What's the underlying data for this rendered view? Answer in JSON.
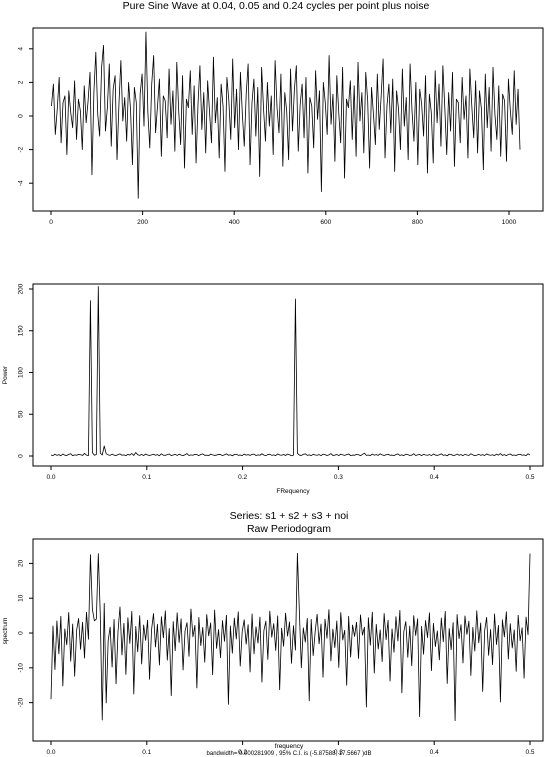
{
  "chart_data": [
    {
      "type": "line",
      "title": "Pure Sine Wave at 0.04, 0.05 and 0.24 cycles per point plus noise",
      "xlabel": "",
      "ylabel": "",
      "xlim": [
        0,
        1024
      ],
      "ylim": [
        -5,
        5
      ],
      "x_ticks": [
        0,
        200,
        400,
        600,
        800,
        1000
      ],
      "x_tick_labels": [
        "0",
        "200",
        "400",
        "600",
        "800",
        "1000"
      ],
      "y_ticks": [
        -4,
        -2,
        0,
        2,
        4
      ],
      "y_tick_labels": [
        "-4",
        "-2",
        "0",
        "2",
        "4"
      ],
      "series": [
        {
          "x_start": 1,
          "x_end": 1024,
          "x_step": 4,
          "values": [
            0.6,
            1.9,
            -1.1,
            0.4,
            2.3,
            -1.6,
            0.8,
            1.2,
            -2.3,
            1.5,
            0.2,
            -0.7,
            2.1,
            -1.4,
            1.0,
            0.3,
            -2.0,
            1.8,
            -0.4,
            0.9,
            2.6,
            -3.5,
            1.4,
            3.8,
            0.1,
            -1.2,
            2.9,
            4.2,
            -0.9,
            0.5,
            3.1,
            -1.8,
            1.6,
            2.4,
            -2.6,
            0.7,
            3.3,
            -0.3,
            1.1,
            -1.5,
            2.0,
            0.4,
            -2.9,
            1.7,
            0.8,
            -4.9,
            1.3,
            2.5,
            -0.6,
            5.0,
            0.2,
            -1.9,
            1.9,
            3.6,
            -1.0,
            0.6,
            2.2,
            -2.4,
            1.2,
            0.9,
            -1.3,
            2.8,
            -0.5,
            1.5,
            -2.1,
            3.2,
            0.3,
            -1.7,
            2.4,
            -3.1,
            1.0,
            0.5,
            2.7,
            -1.1,
            1.8,
            -2.8,
            0.7,
            3.0,
            -0.8,
            1.4,
            -2.2,
            2.1,
            0.2,
            -1.6,
            3.5,
            -0.4,
            1.1,
            -2.5,
            1.9,
            0.6,
            -3.3,
            2.3,
            0.9,
            -1.4,
            3.4,
            -0.7,
            1.6,
            -2.0,
            2.6,
            0.1,
            -1.8,
            1.3,
            3.1,
            -2.9,
            0.8,
            2.2,
            -1.2,
            1.7,
            -3.6,
            2.9,
            0.4,
            -1.5,
            2.0,
            -0.6,
            1.2,
            -2.3,
            3.3,
            0.5,
            -1.0,
            2.5,
            -3.0,
            1.4,
            0.3,
            -2.6,
            2.8,
            -0.9,
            1.6,
            3.0,
            -2.1,
            0.7,
            1.9,
            -1.3,
            2.3,
            -3.4,
            1.1,
            0.6,
            -1.9,
            2.7,
            -0.2,
            1.5,
            -4.5,
            2.0,
            0.8,
            -1.1,
            3.6,
            -0.5,
            1.3,
            -2.7,
            2.4,
            0.2,
            -1.6,
            2.9,
            -3.7,
            1.0,
            0.5,
            2.1,
            -1.4,
            1.8,
            -2.4,
            3.2,
            -0.3,
            1.4,
            -2.2,
            2.6,
            0.9,
            -3.1,
            1.7,
            0.1,
            -1.7,
            2.5,
            -0.8,
            1.2,
            3.4,
            -2.5,
            0.6,
            1.9,
            -1.0,
            2.2,
            -3.3,
            1.5,
            0.4,
            -2.0,
            2.8,
            -0.6,
            1.1,
            -2.6,
            3.1,
            0.3,
            -1.5,
            2.0,
            -2.9,
            1.6,
            0.7,
            -1.2,
            2.4,
            -3.4,
            1.3,
            0.2,
            -2.8,
            2.7,
            -0.4,
            1.9,
            -1.8,
            3.0,
            0.5,
            -2.3,
            1.4,
            -0.9,
            2.6,
            -3.0,
            1.0,
            0.8,
            -1.6,
            2.3,
            -0.2,
            1.2,
            -2.5,
            2.8,
            0.6,
            -1.3,
            2.1,
            -2.2,
            1.5,
            0.4,
            -3.2,
            2.5,
            -0.7,
            1.7,
            -2.1,
            2.9,
            0.1,
            -1.4,
            1.8,
            -2.4,
            1.3,
            0.9,
            -2.7,
            2.2,
            0.3,
            -1.1,
            2.7,
            -0.5,
            1.6,
            -2.0
          ]
        }
      ]
    },
    {
      "type": "line",
      "title": "",
      "xlabel": "FRequency",
      "ylabel": "Power",
      "xlim": [
        0,
        0.5
      ],
      "ylim": [
        0,
        200
      ],
      "x_ticks": [
        0.0,
        0.1,
        0.2,
        0.3,
        0.4,
        0.5
      ],
      "x_tick_labels": [
        "0.0",
        "0.1",
        "0.2",
        "0.3",
        "0.4",
        "0.5"
      ],
      "y_ticks": [
        0,
        50,
        100,
        150,
        200
      ],
      "y_tick_labels": [
        "0",
        "50",
        "100",
        "150",
        "200"
      ],
      "series": [
        {
          "x_start": 0.0,
          "x_end": 0.5,
          "x_step": 0.00195,
          "values": [
            1.2,
            0.5,
            2.1,
            0.8,
            1.6,
            0.3,
            2.4,
            1.0,
            0.6,
            1.9,
            2.7,
            0.4,
            1.3,
            0.9,
            2.0,
            1.5,
            0.7,
            3.1,
            1.1,
            0.5,
            186.0,
            4.0,
            0.9,
            1.8,
            203.0,
            3.5,
            1.2,
            12.0,
            2.6,
            1.4,
            0.8,
            2.2,
            1.0,
            0.6,
            1.7,
            2.5,
            0.9,
            1.3,
            0.4,
            2.0,
            1.1,
            3.0,
            0.7,
            4.2,
            1.5,
            0.8,
            1.9,
            0.5,
            2.3,
            1.2,
            0.6,
            1.4,
            2.1,
            0.9,
            1.7,
            0.3,
            2.6,
            1.0,
            0.8,
            1.6,
            2.4,
            0.5,
            1.2,
            1.9,
            0.7,
            2.2,
            1.1,
            0.4,
            1.5,
            2.8,
            0.6,
            1.3,
            0.9,
            2.0,
            1.6,
            0.5,
            1.8,
            2.5,
            0.8,
            1.0,
            0.4,
            2.3,
            1.4,
            0.7,
            1.1,
            2.0,
            1.7,
            0.6,
            1.3,
            2.6,
            0.9,
            1.5,
            0.3,
            1.8,
            2.1,
            0.8,
            1.2,
            0.5,
            2.4,
            1.0,
            1.6,
            0.7,
            1.9,
            2.2,
            0.6,
            1.4,
            0.9,
            2.7,
            1.1,
            0.4,
            1.7,
            2.0,
            0.8,
            1.3,
            0.5,
            2.5,
            1.2,
            0.9,
            1.8,
            0.6,
            2.3,
            1.5,
            0.3,
            1.0,
            188.0,
            3.2,
            1.1,
            0.7,
            1.9,
            2.6,
            0.8,
            1.4,
            0.5,
            2.0,
            1.2,
            0.9,
            1.7,
            0.4,
            2.2,
            1.6,
            0.6,
            1.3,
            2.9,
            0.7,
            1.0,
            1.8,
            0.5,
            2.1,
            1.4,
            0.8,
            1.6,
            2.4,
            0.6,
            1.1,
            0.9,
            2.0,
            1.5,
            0.4,
            1.9,
            3.4,
            0.7,
            1.2,
            0.5,
            2.3,
            1.0,
            1.7,
            0.8,
            2.6,
            1.3,
            0.6,
            1.5,
            2.1,
            0.9,
            1.1,
            0.4,
            1.8,
            2.5,
            0.7,
            1.4,
            0.5,
            2.2,
            1.6,
            0.8,
            1.0,
            2.8,
            0.6,
            1.3,
            1.9,
            0.4,
            2.0,
            1.2,
            0.9,
            1.7,
            0.5,
            2.4,
            1.1,
            0.7,
            1.5,
            2.6,
            0.8,
            1.4,
            0.3,
            2.1,
            1.8,
            0.6,
            1.0,
            2.3,
            0.9,
            1.6,
            0.5,
            1.9,
            1.2,
            0.7,
            2.7,
            1.4,
            0.4,
            1.1,
            2.0,
            0.8,
            1.7,
            0.6,
            2.5,
            1.3,
            0.9,
            1.5,
            0.5,
            2.2,
            1.0,
            3.0,
            0.7,
            1.6,
            0.4,
            1.9,
            2.4,
            0.8,
            1.2,
            0.6,
            1.8,
            2.1,
            0.9,
            1.4,
            0.5,
            2.6,
            1.1
          ]
        }
      ]
    },
    {
      "type": "line",
      "title": "Series:  s1 + s2 + s3 + noi",
      "subtitle": "Raw Periodogram",
      "xlabel": "frequency",
      "ylabel": "spectrum",
      "footnote": "bandwidth= 0.000281909 , 95% C.I. is (-5.87588, 17.5667 )dB",
      "xlim": [
        0,
        0.5
      ],
      "ylim": [
        -27,
        25
      ],
      "x_ticks": [
        0.0,
        0.1,
        0.2,
        0.3,
        0.4,
        0.5
      ],
      "x_tick_labels": [
        "0.0",
        "0.1",
        "0.2",
        "0.3",
        "0.4",
        "0.5"
      ],
      "y_ticks": [
        -20,
        -10,
        0,
        10,
        20
      ],
      "y_tick_labels": [
        "-20",
        "-10",
        "0",
        "10",
        "20"
      ],
      "series": [
        {
          "x_start": 0.0,
          "x_end": 0.5,
          "x_step": 0.00195,
          "values": [
            -19.0,
            2.0,
            -10.5,
            3.5,
            -6.0,
            4.8,
            -15.2,
            1.2,
            -3.4,
            5.9,
            -8.1,
            2.6,
            -12.4,
            0.8,
            4.2,
            -4.7,
            3.1,
            -7.2,
            6.0,
            -1.8,
            22.5,
            6.8,
            3.5,
            4.0,
            22.8,
            5.2,
            -25.0,
            8.5,
            -20.1,
            -2.2,
            1.7,
            -9.8,
            3.9,
            -14.6,
            0.5,
            7.5,
            -6.3,
            2.8,
            -11.9,
            4.4,
            -3.0,
            6.2,
            -17.5,
            1.9,
            -5.4,
            5.0,
            -8.9,
            2.3,
            -2.1,
            3.7,
            -13.3,
            0.9,
            5.6,
            -4.0,
            2.5,
            -9.2,
            4.7,
            -1.4,
            6.4,
            -7.8,
            1.3,
            -18.0,
            3.3,
            -5.1,
            5.8,
            -2.7,
            4.1,
            -10.6,
            0.6,
            3.0,
            -6.7,
            6.9,
            -1.1,
            2.2,
            -15.8,
            4.5,
            -3.6,
            1.6,
            -8.4,
            5.3,
            -0.8,
            2.9,
            -12.0,
            6.6,
            -4.4,
            1.0,
            -7.1,
            3.6,
            -2.4,
            5.1,
            -20.5,
            2.0,
            -5.8,
            4.3,
            -1.7,
            6.1,
            -9.5,
            0.4,
            3.8,
            -3.2,
            2.4,
            -11.2,
            5.5,
            -6.0,
            1.8,
            -2.9,
            4.6,
            -14.1,
            0.7,
            3.4,
            -7.6,
            6.3,
            -1.2,
            2.7,
            -5.0,
            4.9,
            -16.3,
            1.4,
            -3.8,
            5.7,
            -0.9,
            3.2,
            -8.7,
            2.1,
            -4.9,
            22.9,
            6.2,
            -10.0,
            1.5,
            -2.6,
            4.2,
            -19.5,
            3.9,
            -6.5,
            0.3,
            5.4,
            -3.1,
            2.6,
            -12.7,
            4.0,
            -1.5,
            6.7,
            -8.0,
            1.1,
            -4.2,
            3.5,
            -9.9,
            5.9,
            -2.0,
            0.8,
            -15.0,
            4.8,
            -6.9,
            2.3,
            -1.0,
            3.1,
            -7.3,
            5.2,
            -0.6,
            1.7,
            -21.3,
            4.4,
            -3.5,
            6.0,
            -11.5,
            2.5,
            -4.6,
            0.9,
            -8.2,
            5.6,
            -1.9,
            3.7,
            -13.8,
            1.2,
            -5.5,
            4.7,
            -2.3,
            6.5,
            -17.2,
            0.5,
            3.3,
            -7.0,
            2.0,
            -9.4,
            5.0,
            -0.7,
            4.1,
            -24.0,
            1.9,
            -6.1,
            3.6,
            -1.3,
            5.8,
            -10.8,
            2.8,
            -3.9,
            0.6,
            -7.7,
            4.3,
            -2.5,
            6.2,
            -14.5,
            1.3,
            -4.8,
            3.0,
            -25.2,
            5.3,
            -1.6,
            2.4,
            -8.6,
            4.9,
            -0.4,
            3.4,
            -12.2,
            1.6,
            -5.2,
            6.4,
            -2.8,
            2.9,
            -16.8,
            0.7,
            4.5,
            -6.4,
            1.0,
            -9.1,
            5.5,
            -3.3,
            2.2,
            -19.8,
            3.8,
            -1.1,
            6.1,
            -7.5,
            2.7,
            -4.3,
            0.9,
            -11.0,
            5.1,
            -2.2,
            1.5,
            -13.0,
            4.6,
            -0.5,
            22.8
          ]
        }
      ]
    }
  ]
}
